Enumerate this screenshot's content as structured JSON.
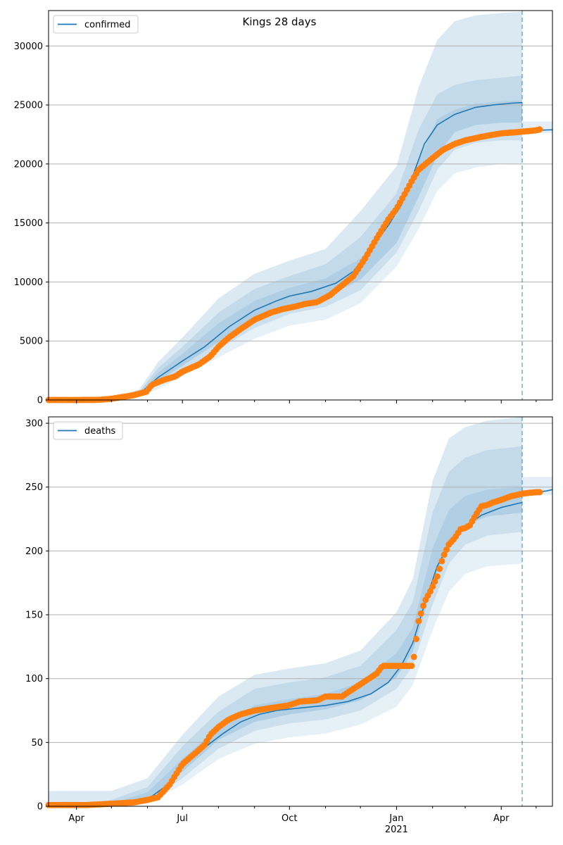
{
  "figure": {
    "title": "Kings 28 days"
  },
  "colors": {
    "line": "#1f77b4",
    "band": "#1f77b4",
    "observed": "#ff7f0e",
    "grid": "#b0b0b0",
    "axis": "#000000"
  },
  "chart_data": [
    {
      "type": "line",
      "title": "Kings 28 days",
      "xlabel": "",
      "ylabel": "",
      "x_type": "date",
      "xlim": [
        "2020-03-08",
        "2021-05-15"
      ],
      "ylim": [
        0,
        33000
      ],
      "yticks": [
        0,
        5000,
        10000,
        15000,
        20000,
        25000,
        30000
      ],
      "xticks": [
        {
          "date": "2020-04-01",
          "label": "Apr",
          "label2": ""
        },
        {
          "date": "2020-07-01",
          "label": "Jul",
          "label2": ""
        },
        {
          "date": "2020-10-01",
          "label": "Oct",
          "label2": ""
        },
        {
          "date": "2021-01-01",
          "label": "Jan",
          "label2": "2021"
        },
        {
          "date": "2021-04-01",
          "label": "Apr",
          "label2": ""
        }
      ],
      "minor_xticks": [
        "2020-05-01",
        "2020-06-01",
        "2020-08-01",
        "2020-09-01",
        "2020-11-01",
        "2020-12-01",
        "2021-02-01",
        "2021-03-01",
        "2021-05-01"
      ],
      "grid": "y",
      "legend": {
        "placement": "top-left",
        "entries": [
          "confirmed"
        ]
      },
      "forecast_date": "2021-04-19",
      "series": [
        {
          "name": "confirmed",
          "kind": "median",
          "x": [
            "2020-03-08",
            "2020-04-01",
            "2020-05-01",
            "2020-05-25",
            "2020-06-10",
            "2020-07-01",
            "2020-07-20",
            "2020-08-10",
            "2020-09-01",
            "2020-09-20",
            "2020-10-01",
            "2020-10-20",
            "2020-11-10",
            "2020-11-25",
            "2020-12-10",
            "2020-12-25",
            "2021-01-05",
            "2021-01-15",
            "2021-01-25",
            "2021-02-05",
            "2021-02-20",
            "2021-03-10",
            "2021-03-25",
            "2021-04-10",
            "2021-04-19"
          ],
          "y": [
            0,
            0,
            50,
            500,
            1900,
            3300,
            4500,
            6200,
            7600,
            8400,
            8800,
            9200,
            9900,
            10900,
            12800,
            14800,
            16500,
            19000,
            21700,
            23300,
            24200,
            24800,
            25000,
            25150,
            25200
          ]
        },
        {
          "name": "",
          "kind": "bands",
          "x": [
            "2020-03-08",
            "2020-04-01",
            "2020-05-01",
            "2020-05-25",
            "2020-06-10",
            "2020-07-01",
            "2020-08-01",
            "2020-09-01",
            "2020-10-01",
            "2020-11-01",
            "2020-12-01",
            "2021-01-01",
            "2021-01-20",
            "2021-02-05",
            "2021-02-20",
            "2021-03-10",
            "2021-04-01",
            "2021-04-19"
          ],
          "lower": [
            [
              0,
              0,
              0,
              300,
              900,
              2000,
              3600,
              5200,
              6300,
              6800,
              8200,
              11300,
              14500,
              17700,
              19200,
              19700,
              20000,
              20000
            ],
            [
              0,
              0,
              20,
              400,
              1300,
              2500,
              4300,
              6100,
              7300,
              7900,
              9300,
              12500,
              16000,
              19500,
              21200,
              21800,
              22000,
              22000
            ],
            [
              0,
              0,
              40,
              450,
              1600,
              2900,
              4900,
              6700,
              8000,
              8700,
              10200,
              13300,
              17200,
              20700,
              22700,
              23300,
              23500,
              23500
            ]
          ],
          "upper": [
            [
              0,
              0,
              60,
              600,
              2300,
              3900,
              6500,
              8400,
              9500,
              10300,
              12000,
              15600,
              20200,
              23800,
              24600,
              25100,
              25300,
              25400
            ],
            [
              0,
              0,
              80,
              700,
              2700,
              4500,
              7400,
              9400,
              10500,
              11500,
              13800,
              17500,
              22900,
              25900,
              26700,
              27100,
              27300,
              27500
            ],
            [
              0,
              0,
              150,
              900,
              3200,
              5300,
              8600,
              10700,
              11800,
              12800,
              16000,
              19800,
              26500,
              30500,
              32100,
              32600,
              32800,
              32900
            ]
          ]
        },
        {
          "name": "",
          "kind": "projection",
          "x": [
            "2021-04-19",
            "2021-05-01",
            "2021-05-10",
            "2021-05-15"
          ],
          "y": [
            22800,
            22850,
            22880,
            22900
          ],
          "band": [
            22600,
            23600
          ]
        },
        {
          "name": "",
          "kind": "observed",
          "x": [
            "2020-03-08",
            "2020-04-01",
            "2020-04-20",
            "2020-05-01",
            "2020-05-10",
            "2020-05-20",
            "2020-05-31",
            "2020-06-05",
            "2020-06-15",
            "2020-06-25",
            "2020-07-01",
            "2020-07-15",
            "2020-07-25",
            "2020-08-01",
            "2020-08-10",
            "2020-08-20",
            "2020-09-01",
            "2020-09-15",
            "2020-09-25",
            "2020-10-05",
            "2020-10-15",
            "2020-10-25",
            "2020-11-05",
            "2020-11-15",
            "2020-11-25",
            "2020-12-05",
            "2020-12-15",
            "2020-12-25",
            "2021-01-01",
            "2021-01-10",
            "2021-01-15",
            "2021-01-20",
            "2021-02-01",
            "2021-02-10",
            "2021-02-20",
            "2021-03-01",
            "2021-03-15",
            "2021-04-01",
            "2021-04-15",
            "2021-05-01",
            "2021-05-05"
          ],
          "y": [
            0,
            0,
            10,
            100,
            250,
            400,
            700,
            1300,
            1700,
            2000,
            2400,
            3000,
            3700,
            4500,
            5300,
            6000,
            6800,
            7400,
            7700,
            7900,
            8150,
            8300,
            8900,
            9700,
            10500,
            12000,
            13700,
            15300,
            16200,
            17800,
            18700,
            19500,
            20500,
            21200,
            21700,
            22000,
            22300,
            22600,
            22700,
            22850,
            22950
          ]
        }
      ]
    },
    {
      "type": "line",
      "title": "",
      "xlabel": "",
      "ylabel": "",
      "x_type": "date",
      "xlim": [
        "2020-03-08",
        "2021-05-15"
      ],
      "ylim": [
        0,
        305
      ],
      "yticks": [
        0,
        50,
        100,
        150,
        200,
        250,
        300
      ],
      "xticks": [
        {
          "date": "2020-04-01",
          "label": "Apr",
          "label2": ""
        },
        {
          "date": "2020-07-01",
          "label": "Jul",
          "label2": ""
        },
        {
          "date": "2020-10-01",
          "label": "Oct",
          "label2": ""
        },
        {
          "date": "2021-01-01",
          "label": "Jan",
          "label2": "2021"
        },
        {
          "date": "2021-04-01",
          "label": "Apr",
          "label2": ""
        }
      ],
      "minor_xticks": [
        "2020-05-01",
        "2020-06-01",
        "2020-08-01",
        "2020-09-01",
        "2020-11-01",
        "2020-12-01",
        "2021-02-01",
        "2021-03-01",
        "2021-05-01"
      ],
      "grid": "y",
      "legend": {
        "placement": "top-left",
        "entries": [
          "deaths"
        ]
      },
      "forecast_date": "2021-04-19",
      "series": [
        {
          "name": "deaths",
          "kind": "median",
          "x": [
            "2020-03-08",
            "2020-04-01",
            "2020-05-01",
            "2020-05-20",
            "2020-06-05",
            "2020-06-20",
            "2020-07-01",
            "2020-07-20",
            "2020-08-05",
            "2020-08-20",
            "2020-09-05",
            "2020-09-20",
            "2020-10-10",
            "2020-11-01",
            "2020-11-20",
            "2020-12-10",
            "2020-12-25",
            "2021-01-05",
            "2021-01-15",
            "2021-01-25",
            "2021-02-05",
            "2021-02-15",
            "2021-02-28",
            "2021-03-15",
            "2021-04-01",
            "2021-04-19"
          ],
          "y": [
            0,
            0,
            1,
            3,
            8,
            18,
            32,
            46,
            57,
            66,
            72,
            75,
            77,
            79,
            82,
            88,
            97,
            110,
            128,
            158,
            188,
            205,
            218,
            228,
            234,
            238
          ]
        },
        {
          "name": "",
          "kind": "bands",
          "x": [
            "2020-03-08",
            "2020-04-01",
            "2020-05-01",
            "2020-06-01",
            "2020-07-01",
            "2020-08-01",
            "2020-09-01",
            "2020-10-01",
            "2020-11-01",
            "2020-12-01",
            "2021-01-01",
            "2021-01-15",
            "2021-02-01",
            "2021-02-15",
            "2021-03-01",
            "2021-03-20",
            "2021-04-19"
          ],
          "lower": [
            [
              0,
              0,
              0,
              2,
              17,
              37,
              49,
              54,
              57,
              64,
              78,
              95,
              138,
              168,
              182,
              188,
              190
            ],
            [
              0,
              0,
              0,
              3,
              22,
              45,
              59,
              65,
              68,
              75,
              92,
              110,
              158,
              190,
              205,
              212,
              215
            ],
            [
              0,
              0,
              1,
              5,
              27,
              52,
              66,
              72,
              76,
              83,
              101,
              121,
              174,
              207,
              220,
              227,
              230
            ]
          ],
          "upper": [
            [
              0,
              0,
              2,
              11,
              37,
              62,
              79,
              84,
              88,
              97,
              120,
              140,
              202,
              232,
              243,
              248,
              250
            ],
            [
              0,
              0,
              5,
              15,
              47,
              74,
              92,
              97,
              101,
              110,
              138,
              160,
              230,
              262,
              273,
              279,
              282
            ],
            [
              12,
              12,
              12,
              22,
              56,
              86,
              103,
              108,
              112,
              122,
              152,
              178,
              255,
              288,
              297,
              302,
              305
            ]
          ]
        },
        {
          "name": "",
          "kind": "projection",
          "x": [
            "2021-04-19",
            "2021-05-01",
            "2021-05-10",
            "2021-05-15"
          ],
          "y": [
            245,
            246,
            247,
            248
          ],
          "band": [
            244,
            258
          ]
        },
        {
          "name": "",
          "kind": "observed",
          "x": [
            "2020-03-08",
            "2020-04-01",
            "2020-04-10",
            "2020-05-01",
            "2020-05-20",
            "2020-06-01",
            "2020-06-10",
            "2020-06-20",
            "2020-07-01",
            "2020-07-10",
            "2020-07-20",
            "2020-07-25",
            "2020-08-01",
            "2020-08-10",
            "2020-08-20",
            "2020-09-01",
            "2020-09-15",
            "2020-09-30",
            "2020-10-10",
            "2020-10-25",
            "2020-11-01",
            "2020-11-15",
            "2020-11-25",
            "2020-12-05",
            "2020-12-15",
            "2020-12-20",
            "2020-12-25",
            "2021-01-01",
            "2021-01-15",
            "2021-01-20",
            "2021-01-25",
            "2021-01-31",
            "2021-02-05",
            "2021-02-10",
            "2021-02-15",
            "2021-02-20",
            "2021-02-25",
            "2021-03-01",
            "2021-03-05",
            "2021-03-10",
            "2021-03-15",
            "2021-03-20",
            "2021-03-25",
            "2021-04-01",
            "2021-04-10",
            "2021-04-20",
            "2021-05-01",
            "2021-05-05"
          ],
          "y": [
            1,
            1,
            1,
            2,
            3,
            5,
            7,
            17,
            33,
            40,
            48,
            56,
            62,
            68,
            72,
            75,
            77,
            79,
            82,
            83,
            86,
            86,
            92,
            98,
            104,
            110,
            110,
            110,
            110,
            145,
            160,
            170,
            180,
            195,
            205,
            210,
            217,
            218,
            220,
            228,
            235,
            236,
            238,
            240,
            243,
            245,
            246,
            246
          ]
        }
      ]
    }
  ]
}
